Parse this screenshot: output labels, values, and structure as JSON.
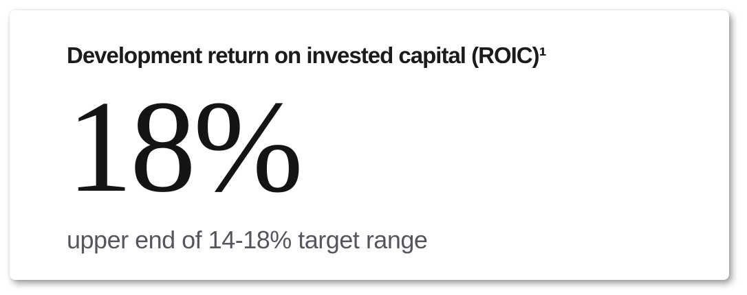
{
  "card": {
    "title": "Development return on invested capital (ROIC)¹",
    "value": "18%",
    "description": "upper end of 14-18% target range"
  },
  "colors": {
    "card_background": "#ffffff",
    "title": "#1b1b1d",
    "value": "#141414",
    "description": "#55565c"
  }
}
